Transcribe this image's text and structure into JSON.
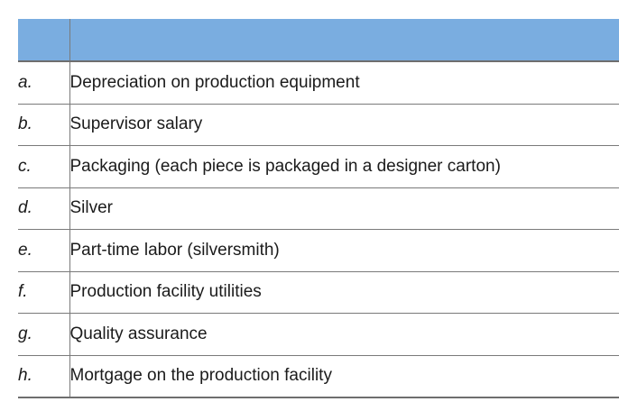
{
  "table": {
    "header": {
      "letter_label": "",
      "description_label": ""
    },
    "rows": [
      {
        "letter": "a.",
        "description": "Depreciation on production equipment"
      },
      {
        "letter": "b.",
        "description": "Supervisor salary"
      },
      {
        "letter": "c.",
        "description": "Packaging (each piece is packaged in a designer carton)"
      },
      {
        "letter": "d.",
        "description": "Silver"
      },
      {
        "letter": "e.",
        "description": "Part-time labor (silversmith)"
      },
      {
        "letter": "f.",
        "description": "Production facility utilities"
      },
      {
        "letter": "g.",
        "description": "Quality assurance"
      },
      {
        "letter": "h.",
        "description": "Mortgage on the production facility"
      }
    ],
    "colors": {
      "header_bg": "#7aade0",
      "grid_line": "#7a7a7a",
      "strong_line": "#6e6e6e",
      "text": "#1b1b1b"
    }
  }
}
